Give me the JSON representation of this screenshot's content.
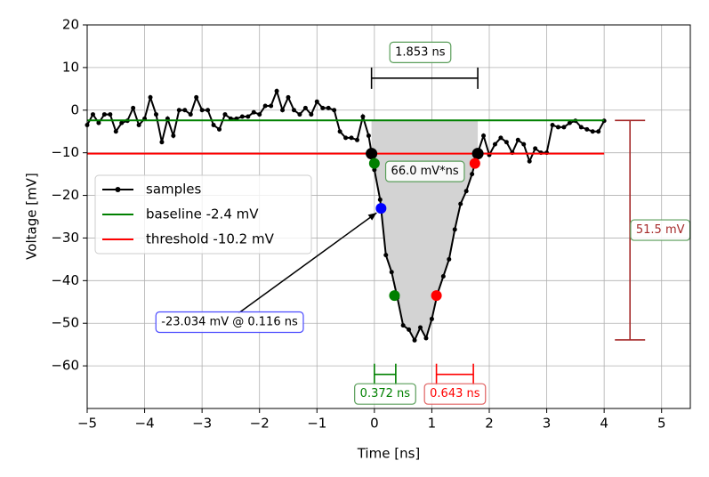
{
  "chart_data": {
    "type": "line",
    "xlabel": "Time [ns]",
    "ylabel": "Voltage [mV]",
    "xlim": [
      -5,
      5.5
    ],
    "ylim": [
      -70,
      20
    ],
    "xticks": [
      {
        "value": -5,
        "label": "−5"
      },
      {
        "value": -4,
        "label": "−4"
      },
      {
        "value": -3,
        "label": "−3"
      },
      {
        "value": -2,
        "label": "−2"
      },
      {
        "value": -1,
        "label": "−1"
      },
      0,
      1,
      2,
      3,
      4,
      5
    ],
    "yticks": [
      {
        "value": -60,
        "label": "−60"
      },
      {
        "value": -50,
        "label": "−50"
      },
      {
        "value": -40,
        "label": "−40"
      },
      {
        "value": -30,
        "label": "−30"
      },
      {
        "value": -20,
        "label": "−20"
      },
      {
        "value": -10,
        "label": "−10"
      },
      0,
      10,
      20
    ],
    "grid": true,
    "legend": "center left",
    "shade_color": "#d3d3d3",
    "series": [
      {
        "name": "samples",
        "color": "#000000",
        "x": [
          -5.0,
          -4.9,
          -4.8,
          -4.7,
          -4.6,
          -4.5,
          -4.4,
          -4.3,
          -4.2,
          -4.1,
          -4.0,
          -3.9,
          -3.8,
          -3.7,
          -3.6,
          -3.5,
          -3.4,
          -3.3,
          -3.2,
          -3.1,
          -3.0,
          -2.9,
          -2.8,
          -2.7,
          -2.6,
          -2.5,
          -2.4,
          -2.3,
          -2.2,
          -2.1,
          -2.0,
          -1.9,
          -1.8,
          -1.7,
          -1.6,
          -1.5,
          -1.4,
          -1.3,
          -1.2,
          -1.1,
          -1.0,
          -0.9,
          -0.8,
          -0.7,
          -0.6,
          -0.5,
          -0.4,
          -0.3,
          -0.2,
          -0.1,
          0.0,
          0.1,
          0.2,
          0.3,
          0.4,
          0.5,
          0.6,
          0.7,
          0.8,
          0.9,
          1.0,
          1.1,
          1.2,
          1.3,
          1.4,
          1.5,
          1.6,
          1.7,
          1.8,
          1.9,
          2.0,
          2.1,
          2.2,
          2.3,
          2.4,
          2.5,
          2.6,
          2.7,
          2.8,
          2.9,
          3.0,
          3.1,
          3.2,
          3.3,
          3.4,
          3.5,
          3.6,
          3.7,
          3.8,
          3.9,
          4.0
        ],
        "values": [
          -3.5,
          -1,
          -3,
          -1,
          -1,
          -5,
          -3,
          -2.5,
          0.5,
          -3.5,
          -2,
          3,
          -1,
          -7.5,
          -2,
          -6,
          0,
          0,
          -1,
          3,
          0,
          0,
          -3.5,
          -4.5,
          -1,
          -2,
          -2,
          -1.5,
          -1.5,
          -0.5,
          -1,
          1,
          1,
          4.5,
          0,
          3,
          0,
          -1,
          0.5,
          -1,
          2,
          0.5,
          0.5,
          0,
          -5,
          -6.5,
          -6.5,
          -7,
          -1.5,
          -6,
          -14,
          -21,
          -34,
          -38,
          -44,
          -50.5,
          -51.5,
          -54,
          -51,
          -53.5,
          -49,
          -43,
          -39,
          -35,
          -28,
          -22,
          -19,
          -15,
          -10,
          -6,
          -10.5,
          -8,
          -6.5,
          -7.5,
          -10,
          -7,
          -8,
          -12,
          -9,
          -10,
          -10,
          -3.5,
          -4,
          -4,
          -3,
          -2.5,
          -4,
          -4.5,
          -5,
          -5,
          -2.5
        ]
      },
      {
        "name": "baseline -2.4 mV",
        "color": "#008000",
        "x": [
          -5,
          4
        ],
        "values": [
          -2.4,
          -2.4
        ]
      },
      {
        "name": "threshold -10.2 mV",
        "color": "#ff0000",
        "x": [
          -5,
          4
        ],
        "values": [
          -10.2,
          -10.2
        ]
      }
    ],
    "markers": [
      {
        "x": -0.05,
        "y": -10.2,
        "color": "#000000"
      },
      {
        "x": 1.8,
        "y": -10.2,
        "color": "#000000"
      },
      {
        "x": 0.0,
        "y": -12.5,
        "color": "#008000"
      },
      {
        "x": 0.35,
        "y": -43.5,
        "color": "#008000"
      },
      {
        "x": 1.08,
        "y": -43.5,
        "color": "#ff0000"
      },
      {
        "x": 1.75,
        "y": -12.5,
        "color": "#ff0000"
      },
      {
        "x": 0.116,
        "y": -23.034,
        "color": "#0000ff"
      }
    ],
    "spans": [
      {
        "text": "1.853 ns",
        "x": [
          -0.05,
          1.8
        ],
        "y": 7.5,
        "color": "#000000",
        "text_color": "#000000",
        "box_color": "#5a9e5a",
        "label": "above"
      },
      {
        "text": "0.372 ns",
        "x": [
          0,
          0.372
        ],
        "y": -62,
        "color": "#008000",
        "text_color": "#008000",
        "box_color": "#5a9e5a",
        "label": "below"
      },
      {
        "text": "0.643 ns",
        "x": [
          1.08,
          1.723
        ],
        "y": -62,
        "color": "#ff0000",
        "text_color": "#ff0000",
        "box_color": "#e06060",
        "label": "below"
      }
    ],
    "amplitude": {
      "text": "51.5 mV",
      "x": 4.45,
      "y": [
        -2.4,
        -53.9
      ],
      "color": "#a52a2a",
      "box_color": "#5a9e5a"
    },
    "area_label": {
      "text": "66.0 mV*ns",
      "box_color": "#5a9e5a"
    },
    "point_label": {
      "text": "-23.034 mV @ 0.116 ns",
      "box_color": "#4a4aff"
    }
  }
}
